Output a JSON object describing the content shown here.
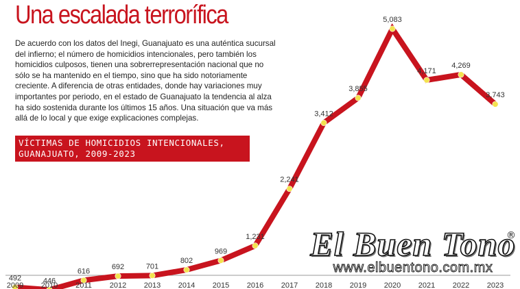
{
  "header": {
    "title": "Una escalada terrorífica",
    "intro": "De acuerdo con los datos del Inegi, Guanajuato es una auténtica sucursal del infierno; el número de homicidios intencionales, pero también los homicidios culposos, tienen una sobrerrepresentación nacional que no sólo se ha mantenido en el tiempo, sino que ha sido notoriamente creciente. A diferencia de otras entidades, donde hay variaciones muy importantes por periodo, en el estado de Guanajuato la tendencia al alza ha sido sostenida durante los últimos 15 años. Una situación que va más allá de lo local y que exige explicaciones complejas."
  },
  "chart_data": {
    "type": "line",
    "title_lines": [
      "VÍCTIMAS DE HOMICIDIOS INTENCIONALES,",
      "GUANAJUATO, 2009-2023"
    ],
    "categories": [
      "2009",
      "2010",
      "2011",
      "2012",
      "2013",
      "2014",
      "2015",
      "2016",
      "2017",
      "2018",
      "2019",
      "2020",
      "2021",
      "2022",
      "2023"
    ],
    "values": [
      492,
      446,
      616,
      692,
      701,
      802,
      969,
      1231,
      2241,
      3412,
      3855,
      5083,
      4171,
      4269,
      3743
    ],
    "value_labels": [
      "492",
      "446",
      "616",
      "692",
      "701",
      "802",
      "969",
      "1,231",
      "2,241",
      "3,412",
      "3,855",
      "5,083",
      "4,171",
      "4,269",
      "3,743"
    ],
    "xlabel": "",
    "ylabel": "",
    "ylim": [
      0,
      5083
    ],
    "grid": false,
    "line_color": "#c8141e",
    "point_color": "#f3e24f"
  },
  "logo": {
    "name": "El Buen Tono",
    "registered": "®",
    "url": "www.elbuentono.com.mx"
  },
  "colors": {
    "accent": "#c8141e",
    "marker": "#f3e24f",
    "text": "#222222"
  }
}
